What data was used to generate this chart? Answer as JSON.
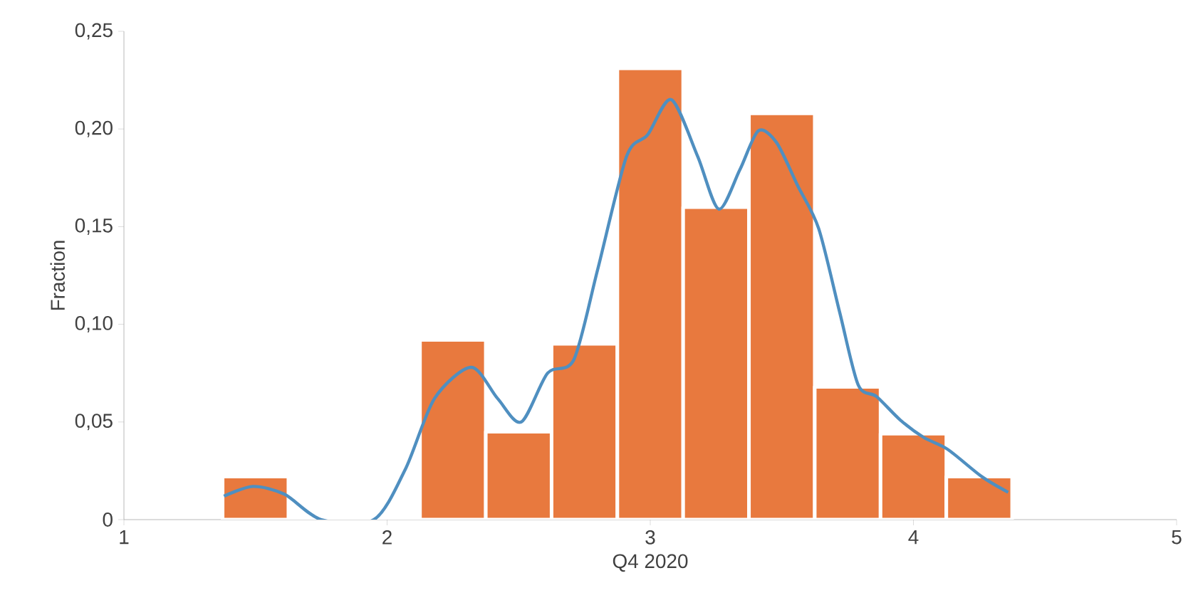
{
  "chart_data": {
    "type": "histogram",
    "xlabel": "Q4 2020",
    "ylabel": "Fraction",
    "bins": [
      1.375,
      1.625,
      1.875,
      2.125,
      2.375,
      2.625,
      2.875,
      3.125,
      3.375,
      3.625,
      3.875,
      4.125,
      4.375
    ],
    "series": [
      {
        "color": "#e8793e",
        "values": [
          0.022,
          0,
          0,
          0.092,
          0.045,
          0.09,
          0.231,
          0.16,
          0.208,
          0.068,
          0.044,
          0.022
        ]
      },
      {
        "type": "line",
        "color": "#4f8fc0",
        "x": [
          1.38,
          1.49,
          1.61,
          1.75,
          1.95,
          2.07,
          2.18,
          2.32,
          2.42,
          2.51,
          2.61,
          2.71,
          2.8,
          2.91,
          2.99,
          3.08,
          3.18,
          3.26,
          3.34,
          3.41,
          3.48,
          3.56,
          3.64,
          3.72,
          3.79,
          3.86,
          3.95,
          4.04,
          4.13,
          4.26,
          4.36
        ],
        "values": [
          0.012,
          0.017,
          0.013,
          0,
          0,
          0.026,
          0.062,
          0.078,
          0.062,
          0.05,
          0.075,
          0.082,
          0.128,
          0.186,
          0.197,
          0.215,
          0.186,
          0.159,
          0.179,
          0.199,
          0.193,
          0.171,
          0.149,
          0.106,
          0.069,
          0.063,
          0.051,
          0.042,
          0.036,
          0.022,
          0.014
        ]
      }
    ],
    "xlim": [
      1,
      5
    ],
    "xticks": [
      1,
      2,
      3,
      4,
      5
    ],
    "ylim": [
      0,
      0.25
    ],
    "yticks": [
      0,
      {
        "value": 0.05,
        "label": "0,05"
      },
      {
        "value": 0.1,
        "label": "0,10"
      },
      {
        "value": 0.15,
        "label": "0,15"
      },
      {
        "value": 0.2,
        "label": "0,20"
      },
      {
        "value": 0.25,
        "label": "0,25"
      }
    ],
    "grid": false,
    "marker": "none",
    "line_style": "solid"
  }
}
